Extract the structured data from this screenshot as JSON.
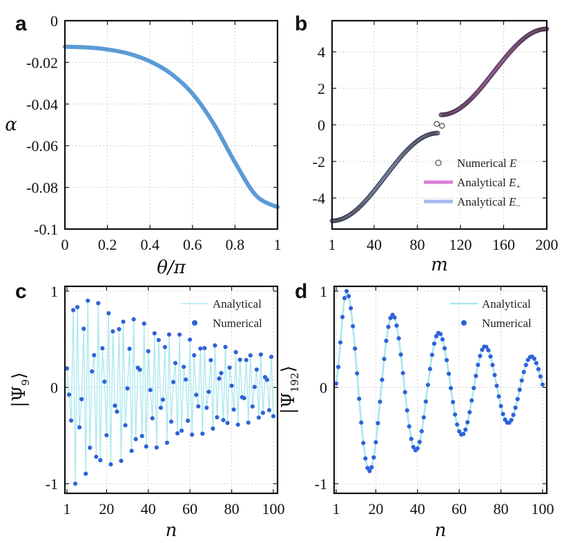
{
  "colors": {
    "curve_a": "#5B9BD5",
    "e_plus": "#D97FD9",
    "e_minus": "#A9B6EE",
    "numerical_open": "#555555",
    "analytical_cyan": "#A8E8EE",
    "numerical_dots": "#2E62D9"
  },
  "chart_data": [
    {
      "panel": "a",
      "type": "line",
      "xlabel": "θ/π",
      "ylabel": "α",
      "xlim": [
        0,
        1
      ],
      "ylim": [
        -0.1,
        0
      ],
      "xticks": [
        0,
        0.2,
        0.4,
        0.6,
        0.8,
        1
      ],
      "xtick_labels": [
        "0",
        "0.2",
        "0.4",
        "0.6",
        "0.8",
        "1"
      ],
      "yticks": [
        0,
        -0.02,
        -0.04,
        -0.06,
        -0.08,
        -0.1
      ],
      "ytick_labels": [
        "0",
        "-0.02",
        "-0.04",
        "-0.06",
        "-0.08",
        "-0.1"
      ],
      "grid": true,
      "series": [
        {
          "name": "α",
          "x": [
            0,
            0.1,
            0.2,
            0.3,
            0.4,
            0.5,
            0.6,
            0.7,
            0.8,
            0.9,
            1.0
          ],
          "y": [
            -0.0125,
            -0.0128,
            -0.0138,
            -0.0158,
            -0.0195,
            -0.0255,
            -0.035,
            -0.0495,
            -0.068,
            -0.084,
            -0.0895
          ]
        }
      ]
    },
    {
      "panel": "b",
      "type": "scatter",
      "xlabel": "m",
      "xlim": [
        1,
        200
      ],
      "ylim": [
        -5.7,
        5.7
      ],
      "xticks": [
        1,
        40,
        80,
        120,
        160,
        200
      ],
      "xtick_labels": [
        "1",
        "40",
        "80",
        "120",
        "160",
        "200"
      ],
      "yticks": [
        4,
        2,
        0,
        -2,
        -4
      ],
      "ytick_labels": [
        "4",
        "2",
        "0",
        "-2",
        "-4"
      ],
      "grid": true,
      "legend": {
        "position": "bottom-right",
        "entries": [
          {
            "prefix": "Numerical ",
            "sym": "E",
            "sub": ""
          },
          {
            "prefix": "Analytical ",
            "sym": "E",
            "sub": "+"
          },
          {
            "prefix": "Analytical ",
            "sym": "E",
            "sub": "−"
          }
        ]
      },
      "series": [
        {
          "name": "Analytical E−",
          "m_range": [
            1,
            99
          ],
          "E_range": [
            -5.25,
            -0.45
          ],
          "shape": "sigmoid"
        },
        {
          "name": "Analytical E+",
          "m_range": [
            102,
            200
          ],
          "E_range": [
            0.55,
            5.25
          ],
          "shape": "sigmoid"
        },
        {
          "name": "Numerical E",
          "note": "open circles along both branches",
          "edge_states": [
            {
              "m": 100,
              "E": 0.05
            },
            {
              "m": 101,
              "E": -0.05
            }
          ]
        }
      ]
    },
    {
      "panel": "c",
      "type": "line",
      "xlabel": "n",
      "ylabel": "|Ψ9⟩",
      "ylabel_base": "|Ψ",
      "ylabel_sub": "9",
      "ylabel_end": "⟩",
      "xlim": [
        0,
        102
      ],
      "ylim": [
        -1.1,
        1.05
      ],
      "xticks": [
        1,
        20,
        40,
        60,
        80,
        100
      ],
      "xtick_labels": [
        "1",
        "20",
        "40",
        "60",
        "80",
        "100"
      ],
      "yticks": [
        1,
        0,
        -1
      ],
      "ytick_labels": [
        "1",
        "0",
        "-1"
      ],
      "grid": true,
      "legend": {
        "position": "top-right",
        "entries": [
          "Analytical",
          "Numerical"
        ]
      },
      "model": {
        "carrier_period_n": 2,
        "envelope_period_n": 11.1,
        "peak_n": 5,
        "amplitude_at_peak": 1.0,
        "amplitude_at_n100": 0.32,
        "points": 100
      }
    },
    {
      "panel": "d",
      "type": "line",
      "xlabel": "n",
      "ylabel": "|Ψ192⟩",
      "ylabel_base": "|Ψ",
      "ylabel_sub": "192",
      "ylabel_end": "⟩",
      "xlim": [
        0,
        102
      ],
      "ylim": [
        -1.1,
        1.05
      ],
      "xticks": [
        1,
        20,
        40,
        60,
        80,
        100
      ],
      "xtick_labels": [
        "1",
        "20",
        "40",
        "60",
        "80",
        "100"
      ],
      "yticks": [
        1,
        0,
        -1
      ],
      "ytick_labels": [
        "1",
        "0",
        "-1"
      ],
      "grid": true,
      "legend": {
        "position": "top-right",
        "entries": [
          "Analytical",
          "Numerical"
        ]
      },
      "model": {
        "period_n": 22.2,
        "peak_n": 6,
        "amplitude_at_peak": 1.0,
        "amplitude_at_n100": 0.3,
        "points": 100
      }
    }
  ],
  "panel_letters": [
    "a",
    "b",
    "c",
    "d"
  ]
}
